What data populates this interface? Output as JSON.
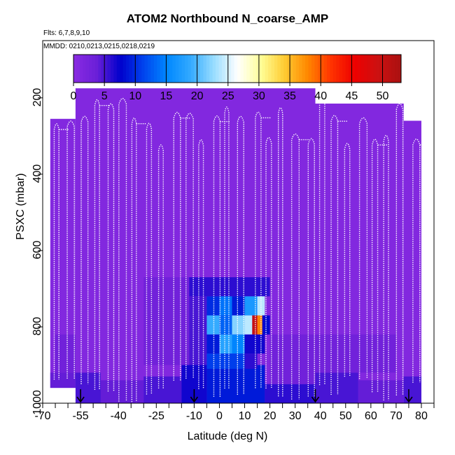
{
  "chart_data": {
    "type": "heatmap",
    "title": "ATOM2 Northbound N_coarse_AMP",
    "flights_label": "Flts: 6,7,8,9,10",
    "dates_label": "MMDD: 0210,0213,0215,0218,0219",
    "xlabel": "Latitude (deg N)",
    "ylabel": "PSXC (mbar)",
    "xlim": [
      -70,
      85
    ],
    "ylim": [
      1000,
      50
    ],
    "x_ticks": [
      "-70",
      "-55",
      "-40",
      "-25",
      "-10",
      "0",
      "10",
      "20",
      "30",
      "40",
      "50",
      "60",
      "70",
      "80"
    ],
    "x_tick_values": [
      -70,
      -55,
      -40,
      -25,
      -10,
      0,
      10,
      20,
      30,
      40,
      50,
      60,
      70,
      80
    ],
    "y_ticks": [
      "200",
      "400",
      "600",
      "800",
      "1000"
    ],
    "y_tick_values": [
      200,
      400,
      600,
      800,
      1000
    ],
    "colorbar": {
      "ticks": [
        "0",
        "5",
        "10",
        "15",
        "20",
        "25",
        "30",
        "35",
        "40",
        "45",
        "50"
      ],
      "tick_values": [
        0,
        5,
        10,
        15,
        20,
        25,
        30,
        35,
        40,
        45,
        50
      ],
      "range": [
        0,
        53
      ],
      "colors": [
        "#8a2be2",
        "#6a1fd8",
        "#0000cc",
        "#0044ee",
        "#0088ff",
        "#33aaff",
        "#99ddff",
        "#ffffff",
        "#ffff99",
        "#ffcc33",
        "#ff8800",
        "#ff3300",
        "#ee0000",
        "#cc1111",
        "#aa1111"
      ]
    },
    "background_value": 1,
    "data_regions": [
      {
        "lat": [
          -67,
          -57
        ],
        "p": [
          255,
          1000
        ],
        "value": 1
      },
      {
        "lat": [
          -57,
          38
        ],
        "p": [
          175,
          1000
        ],
        "value": 1
      },
      {
        "lat": [
          38,
          73
        ],
        "p": [
          215,
          1000
        ],
        "value": 1
      },
      {
        "lat": [
          73,
          80
        ],
        "p": [
          260,
          1000
        ],
        "value": 1
      }
    ],
    "cells": [
      {
        "lat": [
          -67,
          -57
        ],
        "p": [
          920,
          1000
        ],
        "value": 4
      },
      {
        "lat": [
          -65,
          -57
        ],
        "p": [
          820,
          920
        ],
        "value": 3
      },
      {
        "lat": [
          -57,
          -47
        ],
        "p": [
          920,
          1000
        ],
        "value": 5
      },
      {
        "lat": [
          -47,
          -30
        ],
        "p": [
          940,
          1000
        ],
        "value": 4
      },
      {
        "lat": [
          -30,
          -15
        ],
        "p": [
          930,
          1000
        ],
        "value": 5
      },
      {
        "lat": [
          -15,
          -5
        ],
        "p": [
          900,
          1000
        ],
        "value": 7
      },
      {
        "lat": [
          -5,
          18
        ],
        "p": [
          900,
          1000
        ],
        "value": 9
      },
      {
        "lat": [
          18,
          38
        ],
        "p": [
          950,
          1000
        ],
        "value": 6
      },
      {
        "lat": [
          38,
          55
        ],
        "p": [
          920,
          1000
        ],
        "value": 5
      },
      {
        "lat": [
          55,
          73
        ],
        "p": [
          940,
          1000
        ],
        "value": 4
      },
      {
        "lat": [
          73,
          80
        ],
        "p": [
          930,
          1000
        ],
        "value": 5
      },
      {
        "lat": [
          -12,
          20
        ],
        "p": [
          670,
          720
        ],
        "value": 6
      },
      {
        "lat": [
          -12,
          -5
        ],
        "p": [
          720,
          900
        ],
        "value": 5
      },
      {
        "lat": [
          -5,
          0
        ],
        "p": [
          720,
          770
        ],
        "value": 10
      },
      {
        "lat": [
          0,
          5
        ],
        "p": [
          720,
          770
        ],
        "value": 14
      },
      {
        "lat": [
          5,
          10
        ],
        "p": [
          720,
          770
        ],
        "value": 9
      },
      {
        "lat": [
          10,
          15
        ],
        "p": [
          720,
          770
        ],
        "value": 17
      },
      {
        "lat": [
          15,
          18
        ],
        "p": [
          720,
          770
        ],
        "value": 24
      },
      {
        "lat": [
          -5,
          0
        ],
        "p": [
          770,
          820
        ],
        "value": 19
      },
      {
        "lat": [
          0,
          5
        ],
        "p": [
          770,
          820
        ],
        "value": 13
      },
      {
        "lat": [
          5,
          10
        ],
        "p": [
          770,
          820
        ],
        "value": 22
      },
      {
        "lat": [
          10,
          13
        ],
        "p": [
          770,
          820
        ],
        "value": 24
      },
      {
        "lat": [
          13,
          15
        ],
        "p": [
          770,
          820
        ],
        "value": 50
      },
      {
        "lat": [
          15,
          17
        ],
        "p": [
          770,
          820
        ],
        "value": 38
      },
      {
        "lat": [
          17,
          20
        ],
        "p": [
          770,
          820
        ],
        "value": 8
      },
      {
        "lat": [
          -5,
          0
        ],
        "p": [
          820,
          870
        ],
        "value": 9
      },
      {
        "lat": [
          0,
          5
        ],
        "p": [
          820,
          870
        ],
        "value": 18
      },
      {
        "lat": [
          5,
          10
        ],
        "p": [
          820,
          870
        ],
        "value": 15
      },
      {
        "lat": [
          10,
          18
        ],
        "p": [
          820,
          870
        ],
        "value": 7
      },
      {
        "lat": [
          -5,
          10
        ],
        "p": [
          870,
          910
        ],
        "value": 11
      },
      {
        "lat": [
          10,
          15
        ],
        "p": [
          870,
          910
        ],
        "value": 6
      },
      {
        "lat": [
          -30,
          -12
        ],
        "p": [
          670,
          900
        ],
        "value": 3
      },
      {
        "lat": [
          20,
          38
        ],
        "p": [
          820,
          950
        ],
        "value": 3
      },
      {
        "lat": [
          38,
          70
        ],
        "p": [
          820,
          920
        ],
        "value": 3
      }
    ],
    "flight_profiles_count": 28,
    "arrow_markers_lat": [
      -55,
      -10,
      38,
      75
    ]
  }
}
